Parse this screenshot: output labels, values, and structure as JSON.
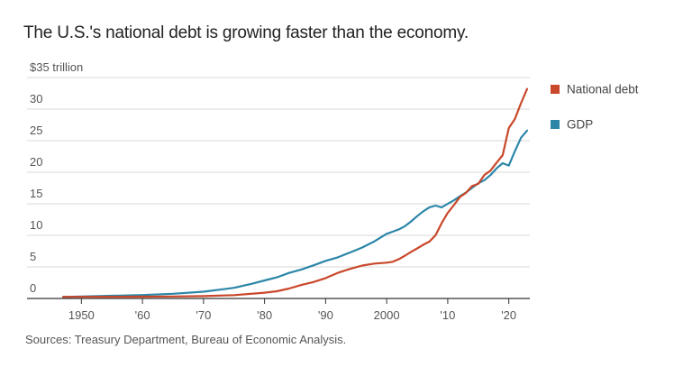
{
  "title": "The U.S.'s national debt is growing faster than the economy.",
  "source": "Sources: Treasury Department, Bureau of Economic Analysis.",
  "chart_data": {
    "type": "line",
    "title": "The U.S.'s national debt is growing faster than the economy.",
    "ylabel": "$35 trillion",
    "ylim": [
      0,
      35
    ],
    "xlim": [
      1947,
      2023
    ],
    "y_ticks": [
      {
        "value": 35,
        "label": "$35 trillion"
      },
      {
        "value": 30,
        "label": "30"
      },
      {
        "value": 25,
        "label": "25"
      },
      {
        "value": 20,
        "label": "20"
      },
      {
        "value": 15,
        "label": "15"
      },
      {
        "value": 10,
        "label": "10"
      },
      {
        "value": 5,
        "label": "5"
      },
      {
        "value": 0,
        "label": "0"
      }
    ],
    "x_ticks": [
      {
        "value": 1950,
        "label": "1950"
      },
      {
        "value": 1960,
        "label": "'60"
      },
      {
        "value": 1970,
        "label": "'70"
      },
      {
        "value": 1980,
        "label": "'80"
      },
      {
        "value": 1990,
        "label": "'90"
      },
      {
        "value": 2000,
        "label": "2000"
      },
      {
        "value": 2010,
        "label": "'10"
      },
      {
        "value": 2020,
        "label": "'20"
      }
    ],
    "grid": true,
    "legend_position": "right",
    "series": [
      {
        "name": "National debt",
        "color": "#c9472a",
        "points": [
          [
            1947,
            0.26
          ],
          [
            1950,
            0.26
          ],
          [
            1955,
            0.27
          ],
          [
            1960,
            0.29
          ],
          [
            1965,
            0.32
          ],
          [
            1970,
            0.37
          ],
          [
            1975,
            0.53
          ],
          [
            1980,
            0.91
          ],
          [
            1982,
            1.14
          ],
          [
            1984,
            1.57
          ],
          [
            1986,
            2.13
          ],
          [
            1988,
            2.6
          ],
          [
            1990,
            3.23
          ],
          [
            1992,
            4.06
          ],
          [
            1994,
            4.69
          ],
          [
            1996,
            5.22
          ],
          [
            1998,
            5.53
          ],
          [
            2000,
            5.67
          ],
          [
            2001,
            5.81
          ],
          [
            2002,
            6.23
          ],
          [
            2003,
            6.78
          ],
          [
            2004,
            7.38
          ],
          [
            2005,
            7.93
          ],
          [
            2006,
            8.51
          ],
          [
            2007,
            9.01
          ],
          [
            2008,
            10.02
          ],
          [
            2009,
            11.91
          ],
          [
            2010,
            13.56
          ],
          [
            2011,
            14.79
          ],
          [
            2012,
            16.07
          ],
          [
            2013,
            16.74
          ],
          [
            2014,
            17.82
          ],
          [
            2015,
            18.15
          ],
          [
            2016,
            19.57
          ],
          [
            2017,
            20.24
          ],
          [
            2018,
            21.52
          ],
          [
            2019,
            22.72
          ],
          [
            2020,
            27.0
          ],
          [
            2021,
            28.43
          ],
          [
            2022,
            30.93
          ],
          [
            2023,
            33.2
          ]
        ]
      },
      {
        "name": "GDP",
        "color": "#2b86a8",
        "points": [
          [
            1947,
            0.25
          ],
          [
            1950,
            0.3
          ],
          [
            1955,
            0.43
          ],
          [
            1960,
            0.54
          ],
          [
            1965,
            0.74
          ],
          [
            1970,
            1.07
          ],
          [
            1975,
            1.68
          ],
          [
            1978,
            2.35
          ],
          [
            1980,
            2.86
          ],
          [
            1982,
            3.34
          ],
          [
            1984,
            4.04
          ],
          [
            1986,
            4.58
          ],
          [
            1988,
            5.24
          ],
          [
            1990,
            5.96
          ],
          [
            1992,
            6.52
          ],
          [
            1994,
            7.29
          ],
          [
            1996,
            8.07
          ],
          [
            1998,
            9.06
          ],
          [
            2000,
            10.25
          ],
          [
            2001,
            10.58
          ],
          [
            2002,
            10.94
          ],
          [
            2003,
            11.46
          ],
          [
            2004,
            12.21
          ],
          [
            2005,
            13.04
          ],
          [
            2006,
            13.81
          ],
          [
            2007,
            14.45
          ],
          [
            2008,
            14.71
          ],
          [
            2009,
            14.45
          ],
          [
            2010,
            14.99
          ],
          [
            2011,
            15.54
          ],
          [
            2012,
            16.2
          ],
          [
            2013,
            16.78
          ],
          [
            2014,
            17.53
          ],
          [
            2015,
            18.24
          ],
          [
            2016,
            18.75
          ],
          [
            2017,
            19.54
          ],
          [
            2018,
            20.61
          ],
          [
            2019,
            21.43
          ],
          [
            2020,
            21.06
          ],
          [
            2021,
            23.32
          ],
          [
            2022,
            25.46
          ],
          [
            2023,
            26.6
          ]
        ]
      }
    ]
  }
}
